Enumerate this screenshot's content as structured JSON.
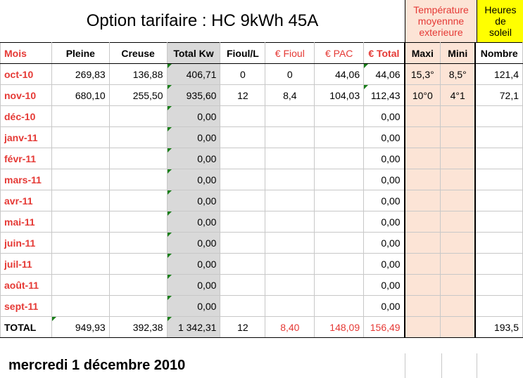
{
  "title": "Option tarifaire : HC 9kWh 45A",
  "temp_header": "Température\nmoyennne\nexterieure",
  "sun_header": "Heures\nde\nsoleil",
  "columns": {
    "mois": "Mois",
    "pleine": "Pleine",
    "creuse": "Creuse",
    "total_kw": "Total Kw",
    "fioul_l": "Fioul/L",
    "eur_fioul": "€ Fioul",
    "eur_pac": "€ PAC",
    "eur_total": "€ Total",
    "maxi": "Maxi",
    "mini": "Mini",
    "nombre": "Nombre"
  },
  "rows": [
    {
      "mois": "oct-10",
      "pleine": "269,83",
      "creuse": "136,88",
      "total_kw": "406,71",
      "fioul_l": "0",
      "eur_fioul": "0",
      "eur_pac": "44,06",
      "eur_total": "44,06",
      "maxi": "15,3°",
      "mini": "8,5°",
      "nombre": "121,4"
    },
    {
      "mois": "nov-10",
      "pleine": "680,10",
      "creuse": "255,50",
      "total_kw": "935,60",
      "fioul_l": "12",
      "eur_fioul": "8,4",
      "eur_pac": "104,03",
      "eur_total": "112,43",
      "maxi": "10°0",
      "mini": "4°1",
      "nombre": "72,1"
    },
    {
      "mois": "déc-10",
      "pleine": "",
      "creuse": "",
      "total_kw": "0,00",
      "fioul_l": "",
      "eur_fioul": "",
      "eur_pac": "",
      "eur_total": "0,00",
      "maxi": "",
      "mini": "",
      "nombre": ""
    },
    {
      "mois": "janv-11",
      "pleine": "",
      "creuse": "",
      "total_kw": "0,00",
      "fioul_l": "",
      "eur_fioul": "",
      "eur_pac": "",
      "eur_total": "0,00",
      "maxi": "",
      "mini": "",
      "nombre": ""
    },
    {
      "mois": "févr-11",
      "pleine": "",
      "creuse": "",
      "total_kw": "0,00",
      "fioul_l": "",
      "eur_fioul": "",
      "eur_pac": "",
      "eur_total": "0,00",
      "maxi": "",
      "mini": "",
      "nombre": ""
    },
    {
      "mois": "mars-11",
      "pleine": "",
      "creuse": "",
      "total_kw": "0,00",
      "fioul_l": "",
      "eur_fioul": "",
      "eur_pac": "",
      "eur_total": "0,00",
      "maxi": "",
      "mini": "",
      "nombre": ""
    },
    {
      "mois": "avr-11",
      "pleine": "",
      "creuse": "",
      "total_kw": "0,00",
      "fioul_l": "",
      "eur_fioul": "",
      "eur_pac": "",
      "eur_total": "0,00",
      "maxi": "",
      "mini": "",
      "nombre": ""
    },
    {
      "mois": "mai-11",
      "pleine": "",
      "creuse": "",
      "total_kw": "0,00",
      "fioul_l": "",
      "eur_fioul": "",
      "eur_pac": "",
      "eur_total": "0,00",
      "maxi": "",
      "mini": "",
      "nombre": ""
    },
    {
      "mois": "juin-11",
      "pleine": "",
      "creuse": "",
      "total_kw": "0,00",
      "fioul_l": "",
      "eur_fioul": "",
      "eur_pac": "",
      "eur_total": "0,00",
      "maxi": "",
      "mini": "",
      "nombre": ""
    },
    {
      "mois": "juil-11",
      "pleine": "",
      "creuse": "",
      "total_kw": "0,00",
      "fioul_l": "",
      "eur_fioul": "",
      "eur_pac": "",
      "eur_total": "0,00",
      "maxi": "",
      "mini": "",
      "nombre": ""
    },
    {
      "mois": "août-11",
      "pleine": "",
      "creuse": "",
      "total_kw": "0,00",
      "fioul_l": "",
      "eur_fioul": "",
      "eur_pac": "",
      "eur_total": "0,00",
      "maxi": "",
      "mini": "",
      "nombre": ""
    },
    {
      "mois": "sept-11",
      "pleine": "",
      "creuse": "",
      "total_kw": "0,00",
      "fioul_l": "",
      "eur_fioul": "",
      "eur_pac": "",
      "eur_total": "0,00",
      "maxi": "",
      "mini": "",
      "nombre": ""
    }
  ],
  "total_row": {
    "mois": "TOTAL",
    "pleine": "949,93",
    "creuse": "392,38",
    "total_kw": "1 342,31",
    "fioul_l": "12",
    "eur_fioul": "8,40",
    "eur_pac": "148,09",
    "eur_total": "156,49",
    "maxi": "",
    "mini": "",
    "nombre": "193,5"
  },
  "date": "mercredi 1 décembre 2010",
  "colors": {
    "accent_red": "#e53935",
    "peach": "#fce4d6",
    "grey": "#d9d9d9",
    "yellow": "#ffff00",
    "marker_green": "#1a7f1a"
  }
}
